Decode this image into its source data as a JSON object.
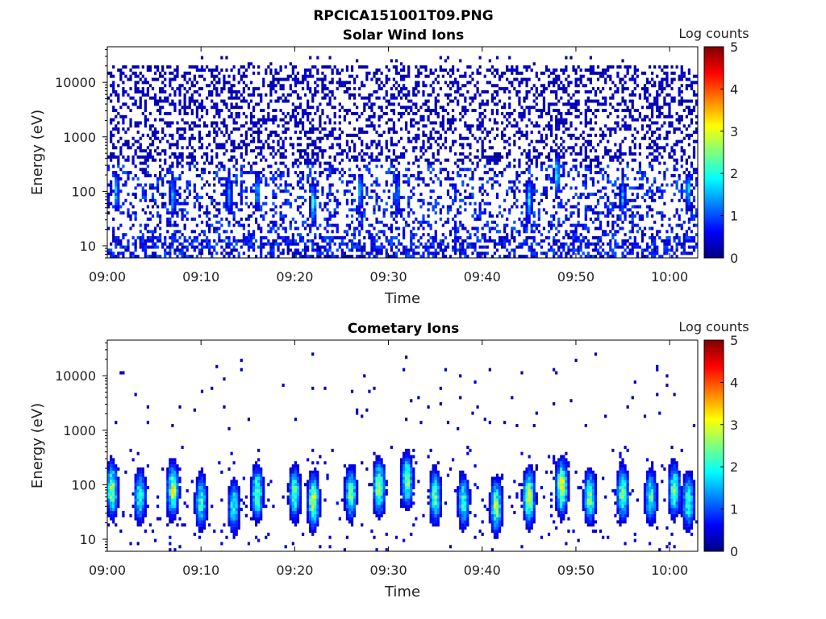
{
  "figure": {
    "title": "RPCICA151001T09.PNG"
  },
  "colormap": {
    "name": "jet",
    "stops": [
      "#00007f",
      "#0000ff",
      "#007fff",
      "#00ffff",
      "#7fff7f",
      "#ffff00",
      "#ff7f00",
      "#ff0000",
      "#7f0000"
    ]
  },
  "chart_data": [
    {
      "type": "heatmap",
      "title": "Solar Wind Ions",
      "xlabel": "Time",
      "ylabel": "Energy (eV)",
      "yscale": "log",
      "xlim": [
        "09:00",
        "10:03"
      ],
      "ylim": [
        6,
        45000
      ],
      "xticks": [
        "09:00",
        "09:10",
        "09:20",
        "09:30",
        "09:40",
        "09:50",
        "10:00"
      ],
      "yticks": [
        "10",
        "100",
        "1000",
        "10000"
      ],
      "colorbar": {
        "label": "Log counts",
        "range": [
          0,
          5
        ],
        "ticks": [
          "0",
          "1",
          "2",
          "3",
          "4",
          "5"
        ]
      },
      "pattern": "sparse low-count noise 10–20000 eV across the whole interval with brief ~100 eV enhancements",
      "enhancements": [
        {
          "time": "09:01",
          "center_eV": 100,
          "peak_log": 1.5
        },
        {
          "time": "09:07",
          "center_eV": 80,
          "peak_log": 1.6
        },
        {
          "time": "09:13",
          "center_eV": 90,
          "peak_log": 1.4
        },
        {
          "time": "09:16",
          "center_eV": 100,
          "peak_log": 1.5
        },
        {
          "time": "09:22",
          "center_eV": 60,
          "peak_log": 2.0
        },
        {
          "time": "09:27",
          "center_eV": 100,
          "peak_log": 1.5
        },
        {
          "time": "09:31",
          "center_eV": 90,
          "peak_log": 1.4
        },
        {
          "time": "09:45",
          "center_eV": 70,
          "peak_log": 1.9
        },
        {
          "time": "09:48",
          "center_eV": 200,
          "peak_log": 2.0
        },
        {
          "time": "09:55",
          "center_eV": 80,
          "peak_log": 1.5
        },
        {
          "time": "10:02",
          "center_eV": 100,
          "peak_log": 1.6
        }
      ]
    },
    {
      "type": "heatmap",
      "title": "Cometary Ions",
      "xlabel": "Time",
      "ylabel": "Energy (eV)",
      "yscale": "log",
      "xlim": [
        "09:00",
        "10:03"
      ],
      "ylim": [
        6,
        45000
      ],
      "xticks": [
        "09:00",
        "09:10",
        "09:20",
        "09:30",
        "09:40",
        "09:50",
        "10:00"
      ],
      "yticks": [
        "10",
        "100",
        "1000",
        "10000"
      ],
      "colorbar": {
        "label": "Log counts",
        "range": [
          0,
          5
        ],
        "ticks": [
          "0",
          "1",
          "2",
          "3",
          "4",
          "5"
        ]
      },
      "pattern": "periodic ion bursts below ~500 eV peaking near 40–100 eV, sparse isolated counts above 1000 eV",
      "bursts": [
        {
          "time": "09:00.5",
          "center_eV": 80,
          "peak_log": 2.7
        },
        {
          "time": "09:03.5",
          "center_eV": 60,
          "peak_log": 2.1
        },
        {
          "time": "09:07",
          "center_eV": 80,
          "peak_log": 2.8
        },
        {
          "time": "09:10",
          "center_eV": 50,
          "peak_log": 2.2
        },
        {
          "time": "09:13.5",
          "center_eV": 40,
          "peak_log": 2.0
        },
        {
          "time": "09:16",
          "center_eV": 70,
          "peak_log": 2.5
        },
        {
          "time": "09:20",
          "center_eV": 70,
          "peak_log": 2.3
        },
        {
          "time": "09:22",
          "center_eV": 50,
          "peak_log": 2.9
        },
        {
          "time": "09:26",
          "center_eV": 70,
          "peak_log": 2.4
        },
        {
          "time": "09:29",
          "center_eV": 90,
          "peak_log": 2.8
        },
        {
          "time": "09:32",
          "center_eV": 120,
          "peak_log": 2.5
        },
        {
          "time": "09:35",
          "center_eV": 60,
          "peak_log": 2.3
        },
        {
          "time": "09:38",
          "center_eV": 50,
          "peak_log": 2.2
        },
        {
          "time": "09:41.5",
          "center_eV": 40,
          "peak_log": 2.6
        },
        {
          "time": "09:45",
          "center_eV": 60,
          "peak_log": 3.0
        },
        {
          "time": "09:48.5",
          "center_eV": 90,
          "peak_log": 3.1
        },
        {
          "time": "09:51.5",
          "center_eV": 60,
          "peak_log": 2.5
        },
        {
          "time": "09:55",
          "center_eV": 70,
          "peak_log": 2.6
        },
        {
          "time": "09:58",
          "center_eV": 60,
          "peak_log": 2.2
        },
        {
          "time": "10:00.5",
          "center_eV": 80,
          "peak_log": 2.5
        },
        {
          "time": "10:02",
          "center_eV": 50,
          "peak_log": 2.4
        }
      ]
    }
  ]
}
